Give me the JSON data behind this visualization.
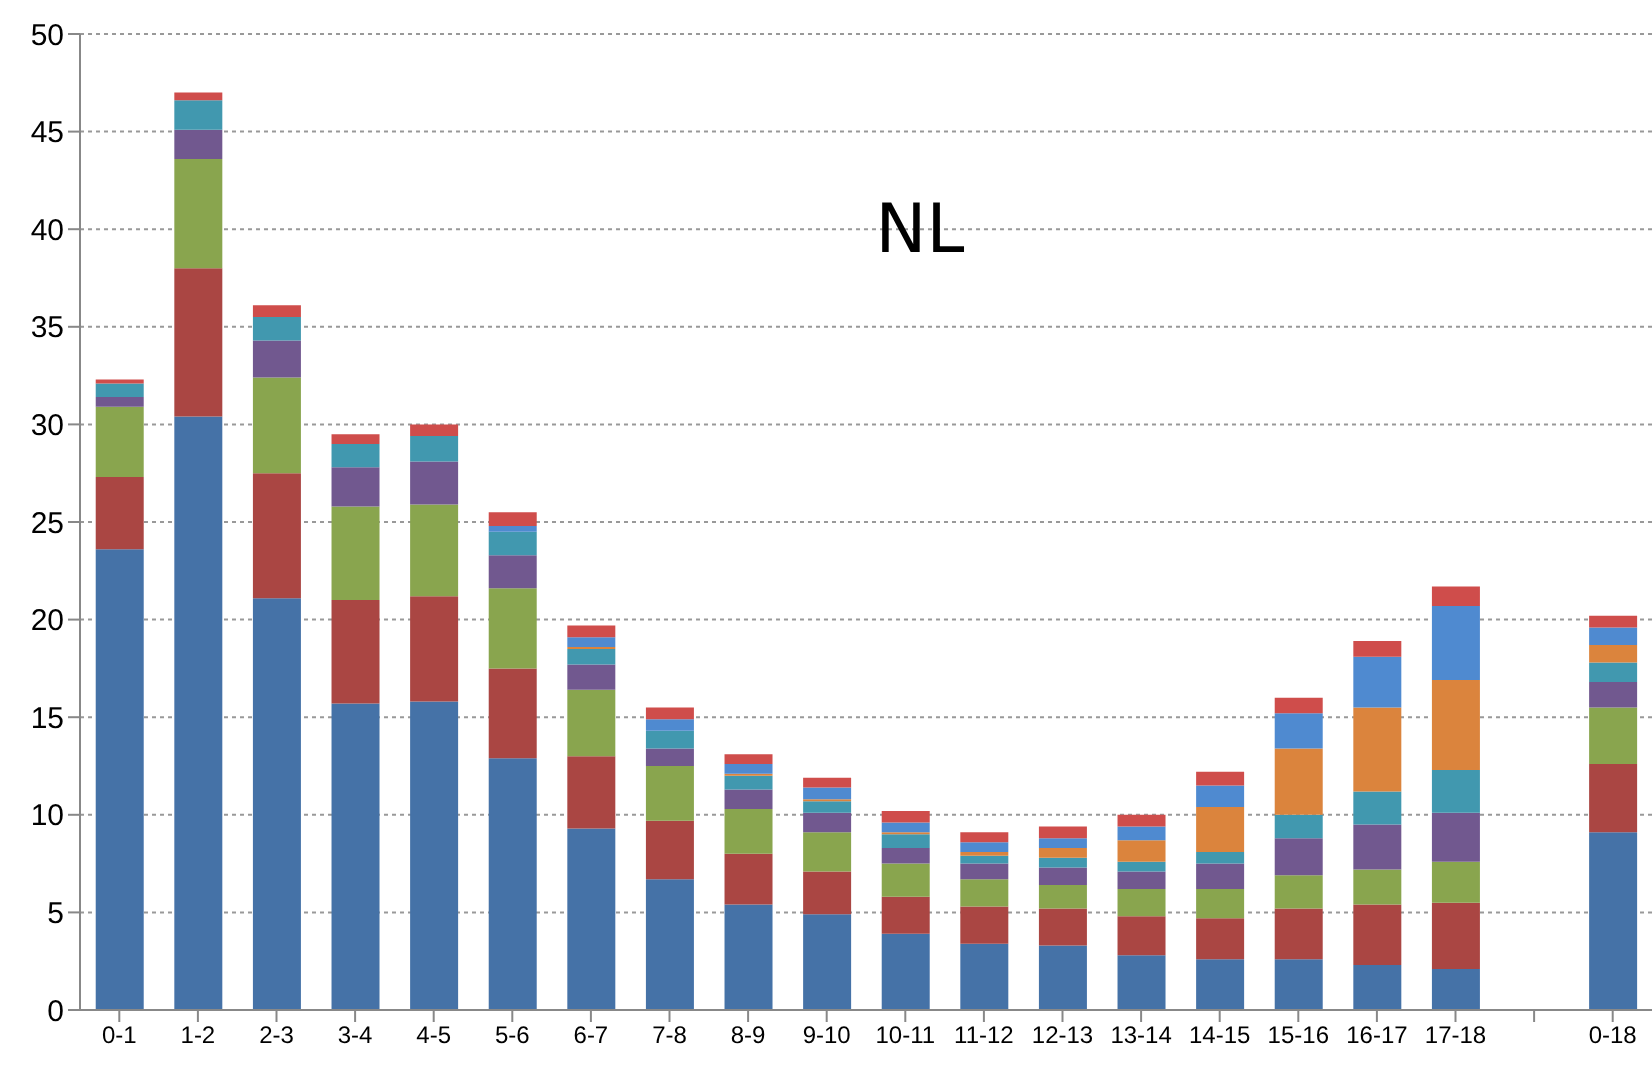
{
  "chart_data": {
    "type": "bar",
    "title": "NL",
    "stacked": true,
    "grid": "y",
    "legend": false,
    "categories": [
      "0-1",
      "1-2",
      "2-3",
      "3-4",
      "4-5",
      "5-6",
      "6-7",
      "7-8",
      "8-9",
      "9-10",
      "10-11",
      "11-12",
      "12-13",
      "13-14",
      "14-15",
      "15-16",
      "16-17",
      "17-18",
      null,
      "0-18"
    ],
    "ylim": [
      0,
      50
    ],
    "yticks": [
      0,
      5,
      10,
      15,
      20,
      25,
      30,
      35,
      40,
      45,
      50
    ],
    "series": [
      {
        "color": "#4572a7",
        "values": [
          23.6,
          30.4,
          21.1,
          15.7,
          15.8,
          12.9,
          9.3,
          6.7,
          5.4,
          4.9,
          3.9,
          3.4,
          3.3,
          2.8,
          2.6,
          2.6,
          2.3,
          2.1,
          null,
          9.1
        ]
      },
      {
        "color": "#aa4643",
        "values": [
          3.7,
          7.6,
          6.4,
          5.3,
          5.4,
          4.6,
          3.7,
          3.0,
          2.6,
          2.2,
          1.9,
          1.9,
          1.9,
          2.0,
          2.1,
          2.6,
          3.1,
          3.4,
          null,
          3.5
        ]
      },
      {
        "color": "#89a54e",
        "values": [
          3.6,
          5.6,
          4.9,
          4.8,
          4.7,
          4.1,
          3.4,
          2.8,
          2.3,
          2.0,
          1.7,
          1.4,
          1.2,
          1.4,
          1.5,
          1.7,
          1.8,
          2.1,
          null,
          2.9
        ]
      },
      {
        "color": "#71588f",
        "values": [
          0.5,
          1.5,
          1.9,
          2.0,
          2.2,
          1.7,
          1.3,
          0.9,
          1.0,
          1.0,
          0.8,
          0.8,
          0.9,
          0.9,
          1.3,
          1.9,
          2.3,
          2.5,
          null,
          1.3
        ]
      },
      {
        "color": "#4198af",
        "values": [
          0.7,
          1.5,
          1.2,
          1.2,
          1.3,
          1.2,
          0.8,
          0.9,
          0.7,
          0.6,
          0.7,
          0.4,
          0.5,
          0.5,
          0.6,
          1.2,
          1.7,
          2.2,
          null,
          1.0
        ]
      },
      {
        "color": "#db843d",
        "values": [
          0,
          0,
          0,
          0,
          0,
          0,
          0.1,
          0,
          0.1,
          0.1,
          0.1,
          0.2,
          0.5,
          1.1,
          2.3,
          3.4,
          4.3,
          4.6,
          null,
          0.9
        ]
      },
      {
        "color": "#4f8ad0",
        "values": [
          0,
          0,
          0,
          0,
          0,
          0.3,
          0.5,
          0.6,
          0.5,
          0.6,
          0.5,
          0.5,
          0.5,
          0.7,
          1.1,
          1.8,
          2.6,
          3.8,
          null,
          0.9
        ]
      },
      {
        "color": "#cf4d4b",
        "values": [
          0.2,
          0.4,
          0.6,
          0.5,
          0.6,
          0.7,
          0.6,
          0.6,
          0.5,
          0.5,
          0.6,
          0.5,
          0.6,
          0.6,
          0.7,
          0.8,
          0.8,
          1.0,
          null,
          0.6
        ]
      }
    ]
  }
}
